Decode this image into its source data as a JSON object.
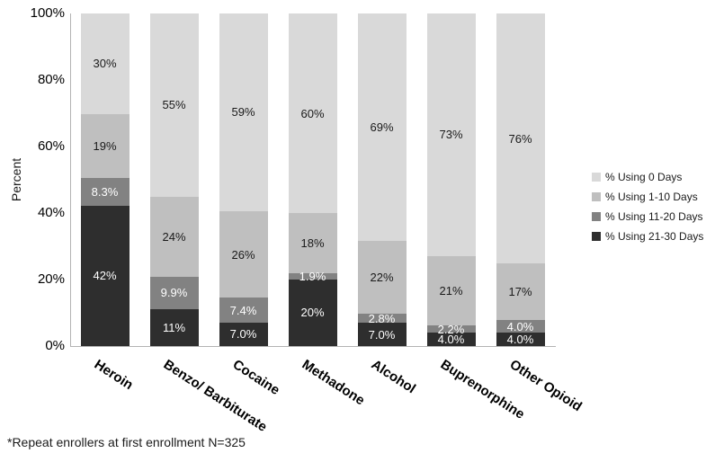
{
  "footnote": "*Repeat enrollers at first enrollment N=325",
  "chart_data": {
    "type": "bar",
    "variant": "stacked-100",
    "title": "",
    "xlabel": "",
    "ylabel": "Percent",
    "ylim": [
      0,
      100
    ],
    "grid": false,
    "y_ticks": [
      "0%",
      "20%",
      "40%",
      "60%",
      "80%",
      "100%"
    ],
    "categories": [
      "Heroin",
      "Benzo/ Barbiturate",
      "Cocaine",
      "Methadone",
      "Alcohol",
      "Buprenorphine",
      "Other Opioid"
    ],
    "series": [
      {
        "name": "% Using 21-30 Days",
        "color": "#2e2e2e",
        "label_color": "#ffffff",
        "values": [
          42,
          11,
          7.0,
          20,
          7.0,
          4.0,
          4.0
        ],
        "labels": [
          "42%",
          "11%",
          "7.0%",
          "20%",
          "7.0%",
          "4.0%",
          "4.0%"
        ]
      },
      {
        "name": "% Using 11-20 Days",
        "color": "#828282",
        "label_color": "#ffffff",
        "values": [
          8.3,
          9.9,
          7.4,
          1.9,
          2.8,
          2.2,
          4.0
        ],
        "labels": [
          "8.3%",
          "9.9%",
          "7.4%",
          "1.9%",
          "2.8%",
          "2.2%",
          "4.0%"
        ]
      },
      {
        "name": "% Using 1-10 Days",
        "color": "#bfbfbf",
        "label_color": "#1a1a1a",
        "values": [
          19,
          24,
          26,
          18,
          22,
          21,
          17
        ],
        "labels": [
          "19%",
          "24%",
          "26%",
          "18%",
          "22%",
          "21%",
          "17%"
        ]
      },
      {
        "name": "% Using 0 Days",
        "color": "#d9d9d9",
        "label_color": "#1a1a1a",
        "values": [
          30,
          55,
          59,
          60,
          69,
          73,
          76
        ],
        "labels": [
          "30%",
          "55%",
          "59%",
          "60%",
          "69%",
          "73%",
          "76%"
        ]
      }
    ],
    "legend": {
      "position": "right",
      "entries": [
        "% Using 0 Days",
        "% Using 1-10 Days",
        "% Using 11-20 Days",
        "% Using 21-30 Days"
      ]
    }
  }
}
